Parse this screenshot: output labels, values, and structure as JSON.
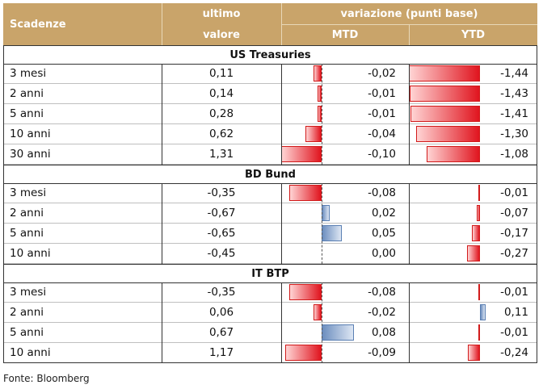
{
  "header": {
    "col1": "Scadenze",
    "col2_line1": "ultimo",
    "col2_line2": "valore",
    "group": "variazione (punti base)",
    "mtd": "MTD",
    "ytd": "YTD"
  },
  "sections": [
    {
      "title": "US Treasuries",
      "rows": [
        {
          "label": "3 mesi",
          "value": "0,11",
          "mtd": "-0,02",
          "ytd": "-1,44",
          "mtd_n": -0.02,
          "ytd_n": -1.44
        },
        {
          "label": "2 anni",
          "value": "0,14",
          "mtd": "-0,01",
          "ytd": "-1,43",
          "mtd_n": -0.01,
          "ytd_n": -1.43
        },
        {
          "label": "5 anni",
          "value": "0,28",
          "mtd": "-0,01",
          "ytd": "-1,41",
          "mtd_n": -0.01,
          "ytd_n": -1.41
        },
        {
          "label": "10 anni",
          "value": "0,62",
          "mtd": "-0,04",
          "ytd": "-1,30",
          "mtd_n": -0.04,
          "ytd_n": -1.3
        },
        {
          "label": "30 anni",
          "value": "1,31",
          "mtd": "-0,10",
          "ytd": "-1,08",
          "mtd_n": -0.1,
          "ytd_n": -1.08
        }
      ]
    },
    {
      "title": "BD Bund",
      "rows": [
        {
          "label": "3 mesi",
          "value": "-0,35",
          "mtd": "-0,08",
          "ytd": "-0,01",
          "mtd_n": -0.08,
          "ytd_n": -0.01
        },
        {
          "label": "2 anni",
          "value": "-0,67",
          "mtd": "0,02",
          "ytd": "-0,07",
          "mtd_n": 0.02,
          "ytd_n": -0.07
        },
        {
          "label": "5 anni",
          "value": "-0,65",
          "mtd": "0,05",
          "ytd": "-0,17",
          "mtd_n": 0.05,
          "ytd_n": -0.17
        },
        {
          "label": "10 anni",
          "value": "-0,45",
          "mtd": "0,00",
          "ytd": "-0,27",
          "mtd_n": 0.0,
          "ytd_n": -0.27
        }
      ]
    },
    {
      "title": "IT BTP",
      "rows": [
        {
          "label": "3 mesi",
          "value": "-0,35",
          "mtd": "-0,08",
          "ytd": "-0,01",
          "mtd_n": -0.08,
          "ytd_n": -0.01
        },
        {
          "label": "2 anni",
          "value": "0,06",
          "mtd": "-0,02",
          "ytd": "0,11",
          "mtd_n": -0.02,
          "ytd_n": 0.11
        },
        {
          "label": "5 anni",
          "value": "0,67",
          "mtd": "0,08",
          "ytd": "-0,01",
          "mtd_n": 0.08,
          "ytd_n": -0.01
        },
        {
          "label": "10 anni",
          "value": "1,17",
          "mtd": "-0,09",
          "ytd": "-0,24",
          "mtd_n": -0.09,
          "ytd_n": -0.24
        }
      ]
    }
  ],
  "source": "Fonte: Bloomberg",
  "colors": {
    "header_bg": "#c9a46a",
    "negative_bar": "#e0151f",
    "positive_bar": "#6c8ebf"
  }
}
